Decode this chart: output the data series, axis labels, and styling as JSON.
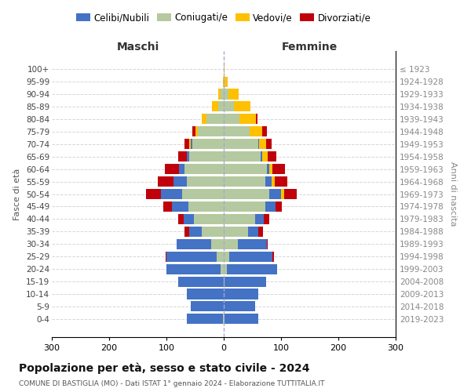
{
  "age_groups": [
    "0-4",
    "5-9",
    "10-14",
    "15-19",
    "20-24",
    "25-29",
    "30-34",
    "35-39",
    "40-44",
    "45-49",
    "50-54",
    "55-59",
    "60-64",
    "65-69",
    "70-74",
    "75-79",
    "80-84",
    "85-89",
    "90-94",
    "95-99",
    "100+"
  ],
  "birth_years": [
    "2019-2023",
    "2014-2018",
    "2009-2013",
    "2004-2008",
    "1999-2003",
    "1994-1998",
    "1989-1993",
    "1984-1988",
    "1979-1983",
    "1974-1978",
    "1969-1973",
    "1964-1968",
    "1959-1963",
    "1954-1958",
    "1949-1953",
    "1944-1948",
    "1939-1943",
    "1934-1938",
    "1929-1933",
    "1924-1928",
    "≤ 1923"
  ],
  "males": {
    "celibi": [
      62,
      58,
      65,
      80,
      95,
      88,
      60,
      22,
      18,
      28,
      38,
      22,
      10,
      5,
      3,
      0,
      0,
      0,
      0,
      0,
      0
    ],
    "coniugati": [
      2,
      0,
      0,
      0,
      5,
      12,
      22,
      38,
      52,
      62,
      72,
      65,
      68,
      60,
      55,
      45,
      30,
      10,
      5,
      0,
      0
    ],
    "vedovi": [
      0,
      0,
      0,
      0,
      0,
      0,
      0,
      0,
      0,
      0,
      0,
      0,
      0,
      0,
      2,
      5,
      8,
      10,
      5,
      2,
      0
    ],
    "divorziati": [
      0,
      0,
      0,
      0,
      0,
      2,
      0,
      8,
      10,
      15,
      25,
      28,
      25,
      15,
      8,
      5,
      0,
      0,
      0,
      0,
      0
    ]
  },
  "females": {
    "nubili": [
      58,
      55,
      60,
      72,
      88,
      75,
      50,
      18,
      15,
      18,
      20,
      12,
      5,
      2,
      2,
      0,
      0,
      0,
      0,
      0,
      0
    ],
    "coniugate": [
      2,
      0,
      0,
      2,
      5,
      10,
      25,
      42,
      55,
      72,
      80,
      72,
      75,
      65,
      60,
      45,
      28,
      18,
      8,
      2,
      0
    ],
    "vedove": [
      0,
      0,
      0,
      0,
      0,
      0,
      0,
      0,
      0,
      0,
      5,
      5,
      5,
      10,
      12,
      22,
      28,
      28,
      18,
      5,
      2
    ],
    "divorziate": [
      0,
      0,
      0,
      0,
      0,
      2,
      2,
      8,
      10,
      12,
      22,
      22,
      22,
      15,
      10,
      8,
      3,
      0,
      0,
      0,
      0
    ]
  },
  "colors": {
    "celibi": "#4472c4",
    "coniugati": "#b5c9a0",
    "vedovi": "#ffc000",
    "divorziati": "#c0000a"
  },
  "legend_labels": [
    "Celibi/Nubili",
    "Coniugati/e",
    "Vedovi/e",
    "Divorziati/e"
  ],
  "title": "Popolazione per età, sesso e stato civile - 2024",
  "subtitle": "COMUNE DI BASTIGLIA (MO) - Dati ISTAT 1° gennaio 2024 - Elaborazione TUTTITALIA.IT",
  "xlabel_left": "Maschi",
  "xlabel_right": "Femmine",
  "ylabel_left": "Fasce di età",
  "ylabel_right": "Anni di nascita",
  "xlim": 300,
  "background_color": "#ffffff",
  "grid_color": "#cccccc"
}
